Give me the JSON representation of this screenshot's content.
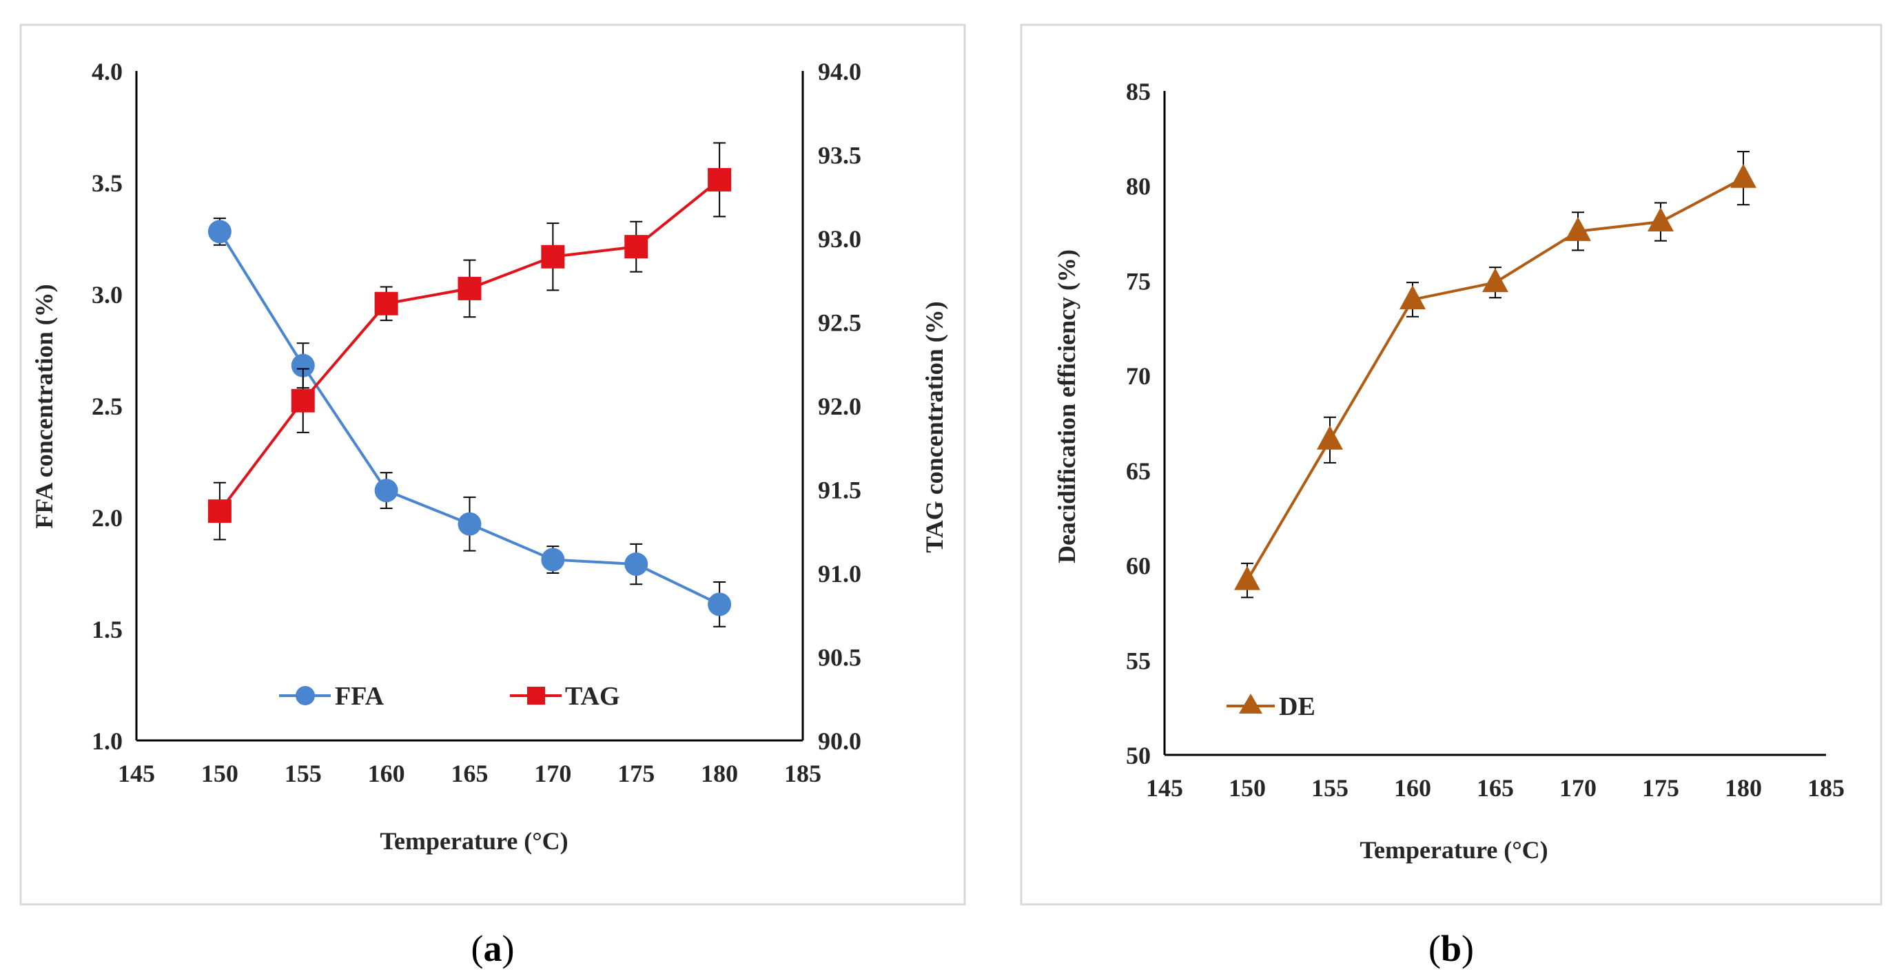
{
  "chart_data": [
    {
      "panel": "a",
      "panel_label": "a",
      "type": "line",
      "x": [
        150,
        155,
        160,
        165,
        170,
        175,
        180
      ],
      "xlabel": "Temperature (°C)",
      "xlim": [
        145,
        185
      ],
      "xticks": [
        145,
        150,
        155,
        160,
        165,
        170,
        175,
        180,
        185
      ],
      "ylabel": "FFA concentration (%)",
      "ylim": [
        1.0,
        4.0
      ],
      "yticks": [
        "1.0",
        "1.5",
        "2.0",
        "2.5",
        "3.0",
        "3.5",
        "4.0"
      ],
      "y2label": "TAG concentration (%)",
      "y2lim": [
        90.0,
        94.0
      ],
      "y2ticks": [
        "90.0",
        "90.5",
        "91.0",
        "91.5",
        "92.0",
        "92.5",
        "93.0",
        "93.5",
        "94.0"
      ],
      "grid": false,
      "legend_position": "bottom-center",
      "series": [
        {
          "name": "FFA",
          "axis": "left",
          "marker": "circle",
          "color": "#4a86d0",
          "values": [
            3.28,
            2.68,
            2.12,
            1.97,
            1.81,
            1.79,
            1.61
          ],
          "errors": [
            0.06,
            0.1,
            0.08,
            0.12,
            0.06,
            0.09,
            0.1
          ]
        },
        {
          "name": "TAG",
          "axis": "right",
          "marker": "square",
          "color": "#e0131b",
          "values": [
            91.37,
            92.03,
            92.61,
            92.7,
            92.89,
            92.95,
            93.35
          ],
          "errors": [
            0.17,
            0.19,
            0.1,
            0.17,
            0.2,
            0.15,
            0.22
          ]
        }
      ]
    },
    {
      "panel": "b",
      "panel_label": "b",
      "type": "line",
      "x": [
        150,
        155,
        160,
        165,
        170,
        175,
        180
      ],
      "xlabel": "Temperature (°C)",
      "xlim": [
        145,
        185
      ],
      "xticks": [
        145,
        150,
        155,
        160,
        165,
        170,
        175,
        180,
        185
      ],
      "ylabel": "Deacidification   efficiency (%)",
      "ylim": [
        50,
        85
      ],
      "yticks": [
        "50",
        "55",
        "60",
        "65",
        "70",
        "75",
        "80",
        "85"
      ],
      "grid": false,
      "legend_position": "bottom-left",
      "series": [
        {
          "name": "DE",
          "axis": "left",
          "marker": "triangle",
          "color": "#b25b13",
          "values": [
            59.2,
            66.6,
            74.0,
            74.9,
            77.6,
            78.1,
            80.4
          ],
          "errors": [
            0.9,
            1.2,
            0.9,
            0.8,
            1.0,
            1.0,
            1.4
          ]
        }
      ]
    }
  ]
}
